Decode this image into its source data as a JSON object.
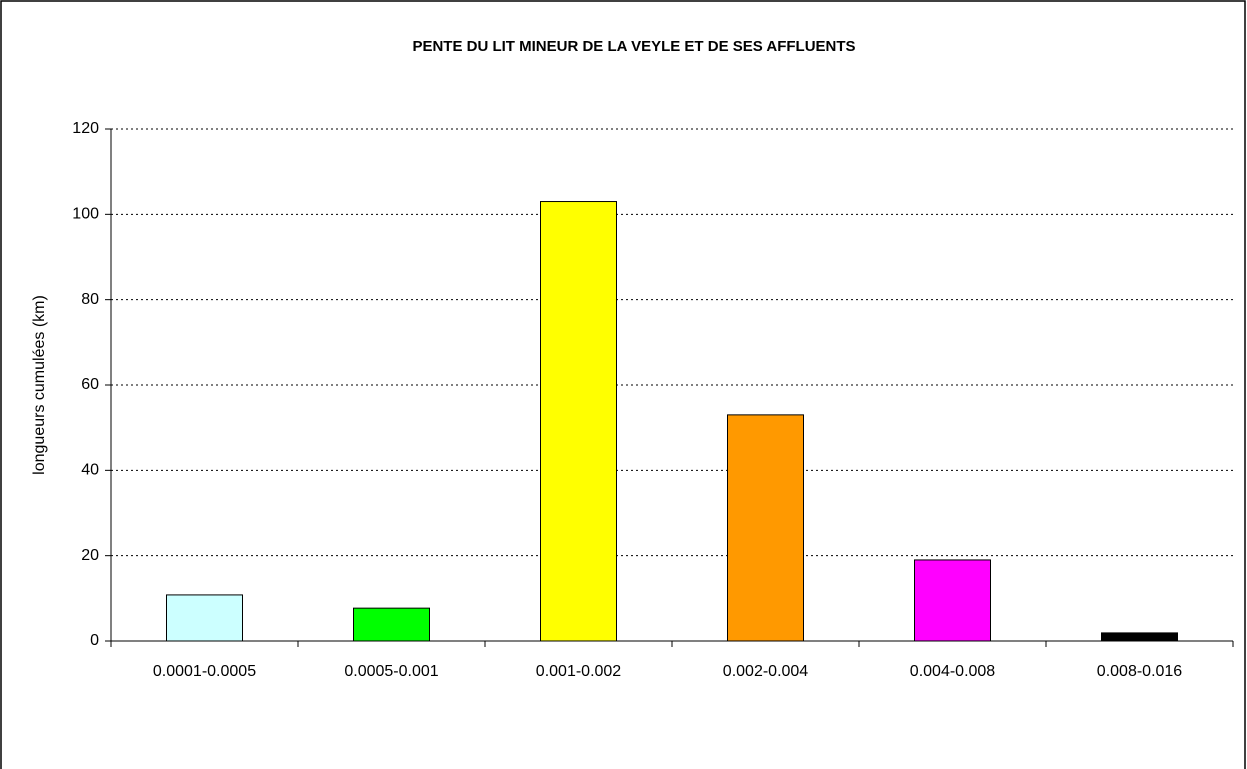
{
  "chart_data": {
    "type": "bar",
    "title": "PENTE DU LIT MINEUR DE LA VEYLE ET DE SES AFFLUENTS",
    "y_label": "longueurs cumulées (km)",
    "categories": [
      "0.0001-0.0005",
      "0.0005-0.001",
      "0.001-0.002",
      "0.002-0.004",
      "0.004-0.008",
      "0.008-0.016"
    ],
    "values": [
      10.8,
      7.7,
      103,
      53,
      19,
      1.9
    ],
    "colors": [
      "#ccffff",
      "#00ff00",
      "#ffff00",
      "#ff9900",
      "#ff00ff",
      "#000000"
    ],
    "ylim": [
      0,
      120
    ],
    "yticks": [
      0,
      20,
      40,
      60,
      80,
      100,
      120
    ],
    "grid": true
  }
}
